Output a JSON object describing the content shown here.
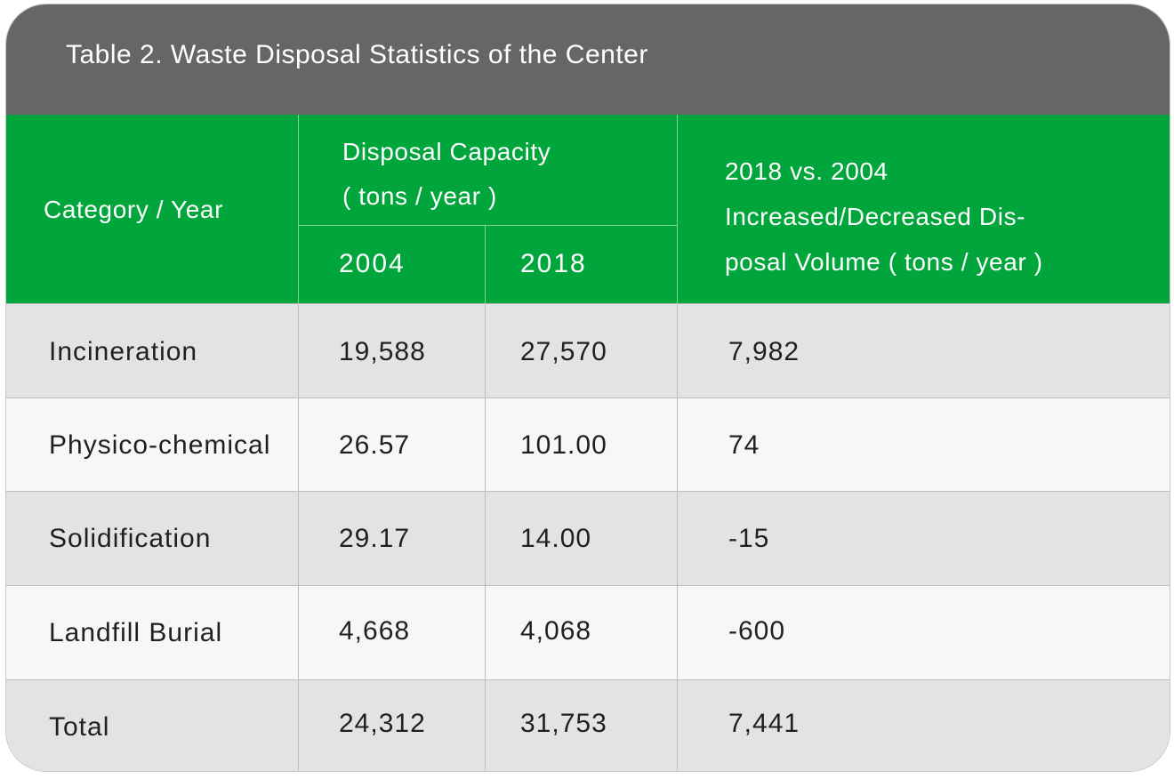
{
  "title": "Table 2. Waste Disposal Statistics of the Center",
  "header": {
    "category_year": "Category / Year",
    "capacity_line1": "Disposal Capacity",
    "capacity_line2": "( tons / year )",
    "year_a": "2004",
    "year_b": "2018",
    "change_line1": "2018 vs. 2004",
    "change_line2": "Increased/Decreased Dis-",
    "change_line3": "posal Volume ( tons / year )"
  },
  "rows": [
    {
      "category": "Incineration",
      "v2004": "19,588",
      "v2018": "27,570",
      "change": "7,982"
    },
    {
      "category": "Physico-chemical",
      "v2004": "26.57",
      "v2018": "101.00",
      "change": "74"
    },
    {
      "category": "Solidification",
      "v2004": "29.17",
      "v2018": "14.00",
      "change": "-15"
    },
    {
      "category": "Landfill Burial",
      "v2004": "4,668",
      "v2018": "4,068",
      "change": "-600"
    },
    {
      "category": "Total",
      "v2004": "24,312",
      "v2018": "31,753",
      "change": "7,441"
    }
  ],
  "colors": {
    "title_bar": "#686566",
    "header_green": "#00a63b",
    "row_shade": "#e3e3e3",
    "row_light": "#f6f7f6",
    "text_dark": "#231f20"
  }
}
